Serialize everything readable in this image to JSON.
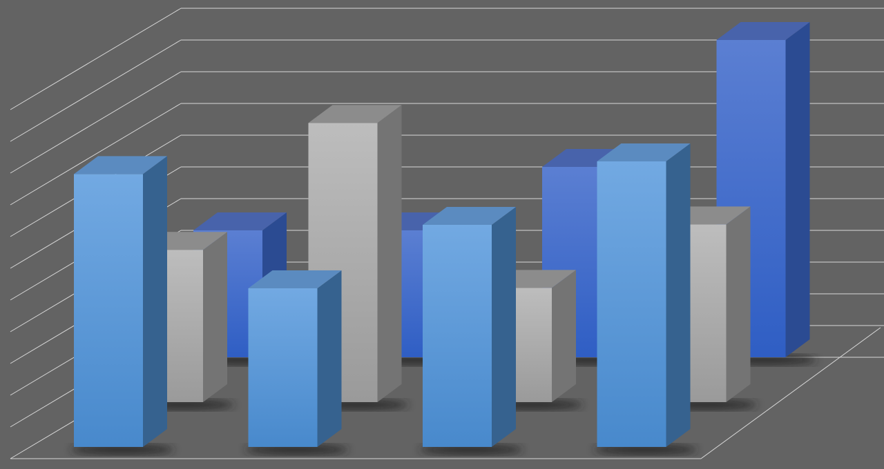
{
  "chart_data": {
    "type": "bar",
    "variant": "3d-clustered-depth",
    "title": "",
    "xlabel": "",
    "ylabel": "",
    "categories": [
      "",
      "",
      "",
      ""
    ],
    "ylim": [
      0,
      11
    ],
    "grid": true,
    "legend": "none",
    "series": [
      {
        "row": "back",
        "color": "#3f66c8",
        "values": [
          4,
          4,
          6,
          10
        ]
      },
      {
        "row": "middle",
        "color": "#a8a8a8",
        "values": [
          4.8,
          8.8,
          3.6,
          5.6
        ]
      },
      {
        "row": "front",
        "color": "#5a9ee0",
        "values": [
          8.6,
          5,
          7,
          9
        ]
      }
    ],
    "background_color": "#636363",
    "gridline_color": "#d8d8d8"
  }
}
